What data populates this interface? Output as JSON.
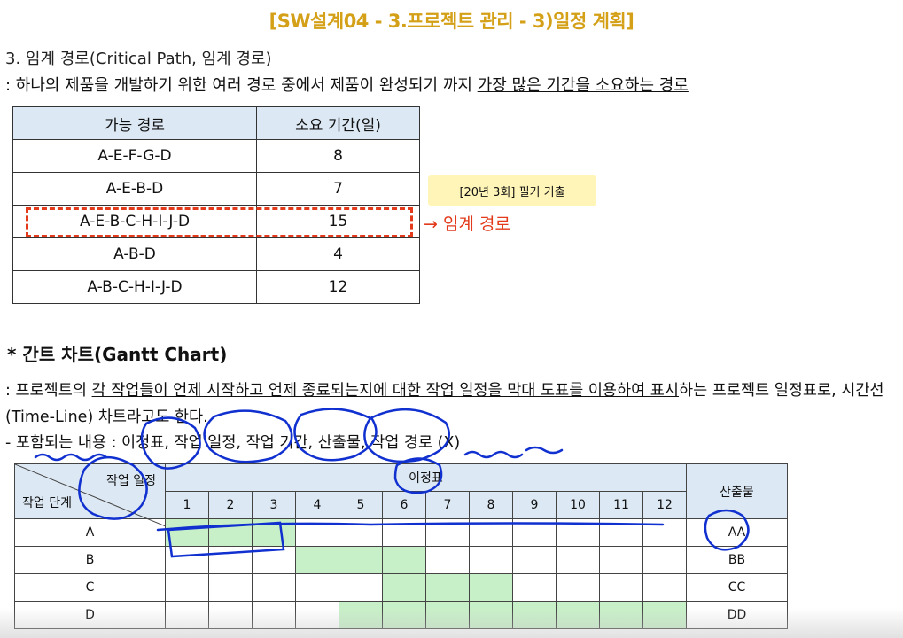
{
  "slide_title": "[SW설계04 - 3.프로젝트 관리 - 3)일정 계획]",
  "section_title": "3. 임계 경로(Critical Path, 임계 경로)",
  "definition_prefix": ": 하나의 제품을 개발하기 위한 여러 경로 중에서 제품이 완성되기 까지 ",
  "definition_underlined": "가장 많은 기간을 소요하는 경로",
  "path_table": {
    "headers": [
      "가능 경로",
      "소요 기간(일)"
    ],
    "rows": [
      {
        "path": "A-E-F-G-D",
        "days": "8"
      },
      {
        "path": "A-E-B-D",
        "days": "7"
      },
      {
        "path": "A-E-B-C-H-I-J-D",
        "days": "15"
      },
      {
        "path": "A-B-D",
        "days": "4"
      },
      {
        "path": "A-B-C-H-I-J-D",
        "days": "12"
      }
    ]
  },
  "exam_tag": "[20년 3회] 필기 기출",
  "critical_label": "→ 임계 경로",
  "gantt_title": "* 간트 차트(Gantt Chart)",
  "gantt_def": {
    "p1": ": 프로젝트의 ",
    "u1": "각 작업들이 언제 시작하고 언제 종료되는지에 대한 작업 일정을 막대 도표를 이용하여 표시",
    "p2": "하는 프로젝트 일정표로, 시간선(Time-Line) 차트라고도 한다."
  },
  "gantt_includes": "- 포함되는 내용 : 이정표, 작업 일정, 작업 기간, 산출물, 작업 경로 (X)",
  "gantt_table": {
    "corner_top": "작업 일정",
    "corner_bottom": "작업 단계",
    "milestone_header": "이정표",
    "output_header": "산출물",
    "months": [
      "1",
      "2",
      "3",
      "4",
      "5",
      "6",
      "7",
      "8",
      "9",
      "10",
      "11",
      "12"
    ],
    "rows": [
      {
        "stage": "A",
        "output": "AA",
        "active": [
          1,
          2,
          3
        ]
      },
      {
        "stage": "B",
        "output": "BB",
        "active": [
          4,
          5,
          6
        ]
      },
      {
        "stage": "C",
        "output": "CC",
        "active": [
          6,
          7,
          8
        ]
      },
      {
        "stage": "D",
        "output": "DD",
        "active": [
          5,
          6,
          7,
          8,
          9,
          10,
          11,
          12
        ]
      }
    ]
  },
  "colors": {
    "title": "#d4a017",
    "header_fill": "#dce8f3",
    "bar_fill": "#c8f0c8",
    "critical": "#e23a1a",
    "annotation_ink": "#1030d0"
  }
}
